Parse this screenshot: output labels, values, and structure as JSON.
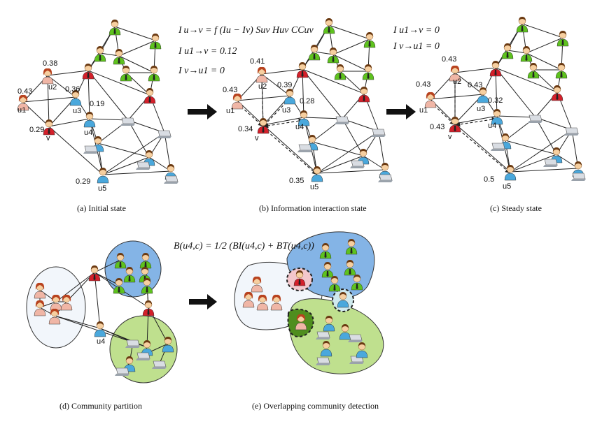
{
  "captions": {
    "a": "(a) Initial state",
    "b": "(b)  Information interaction state",
    "c": "(c)  Steady state",
    "d": "(d) Community partition",
    "e": "(e) Overlapping community detection"
  },
  "equations": {
    "b1": "I u→v = f (Iu − Iv) Suv Huv CCuv",
    "b2": "I u1→v = 0.12",
    "b3": "I v→u1 = 0",
    "c1": "I u1→v = 0",
    "c2": "I v→u1 = 0",
    "e1": "B(u4,c) = 1/2 (BI(u4,c) + BT(u4,c))"
  },
  "labels": {
    "u1": "u1",
    "u2": "u2",
    "u3": "u3",
    "u4": "u4",
    "u5": "u5",
    "v": "v"
  },
  "values": {
    "a": {
      "u1": "0.43",
      "u2": "0.38",
      "u3": "0.36",
      "u4": "0.19",
      "v": "0.29",
      "u5": "0.29"
    },
    "b": {
      "u1": "0.43",
      "u2": "0.41",
      "u3": "0.39",
      "u4": "0.28",
      "v": "0.34",
      "u5": "0.35"
    },
    "c": {
      "u1": "0.43",
      "u2": "0.43",
      "u3": "0.43",
      "u4": "0.32",
      "v": "0.43",
      "u5": "0.5"
    }
  },
  "colors": {
    "green_node": "#5ec21e",
    "red_node": "#d4202a",
    "blue_node": "#4aa8dc",
    "pink_node": "#f0b6a6",
    "community_blue": "#84b4e6",
    "community_green": "#bfe08e",
    "community_white": "#f2f6fb"
  }
}
